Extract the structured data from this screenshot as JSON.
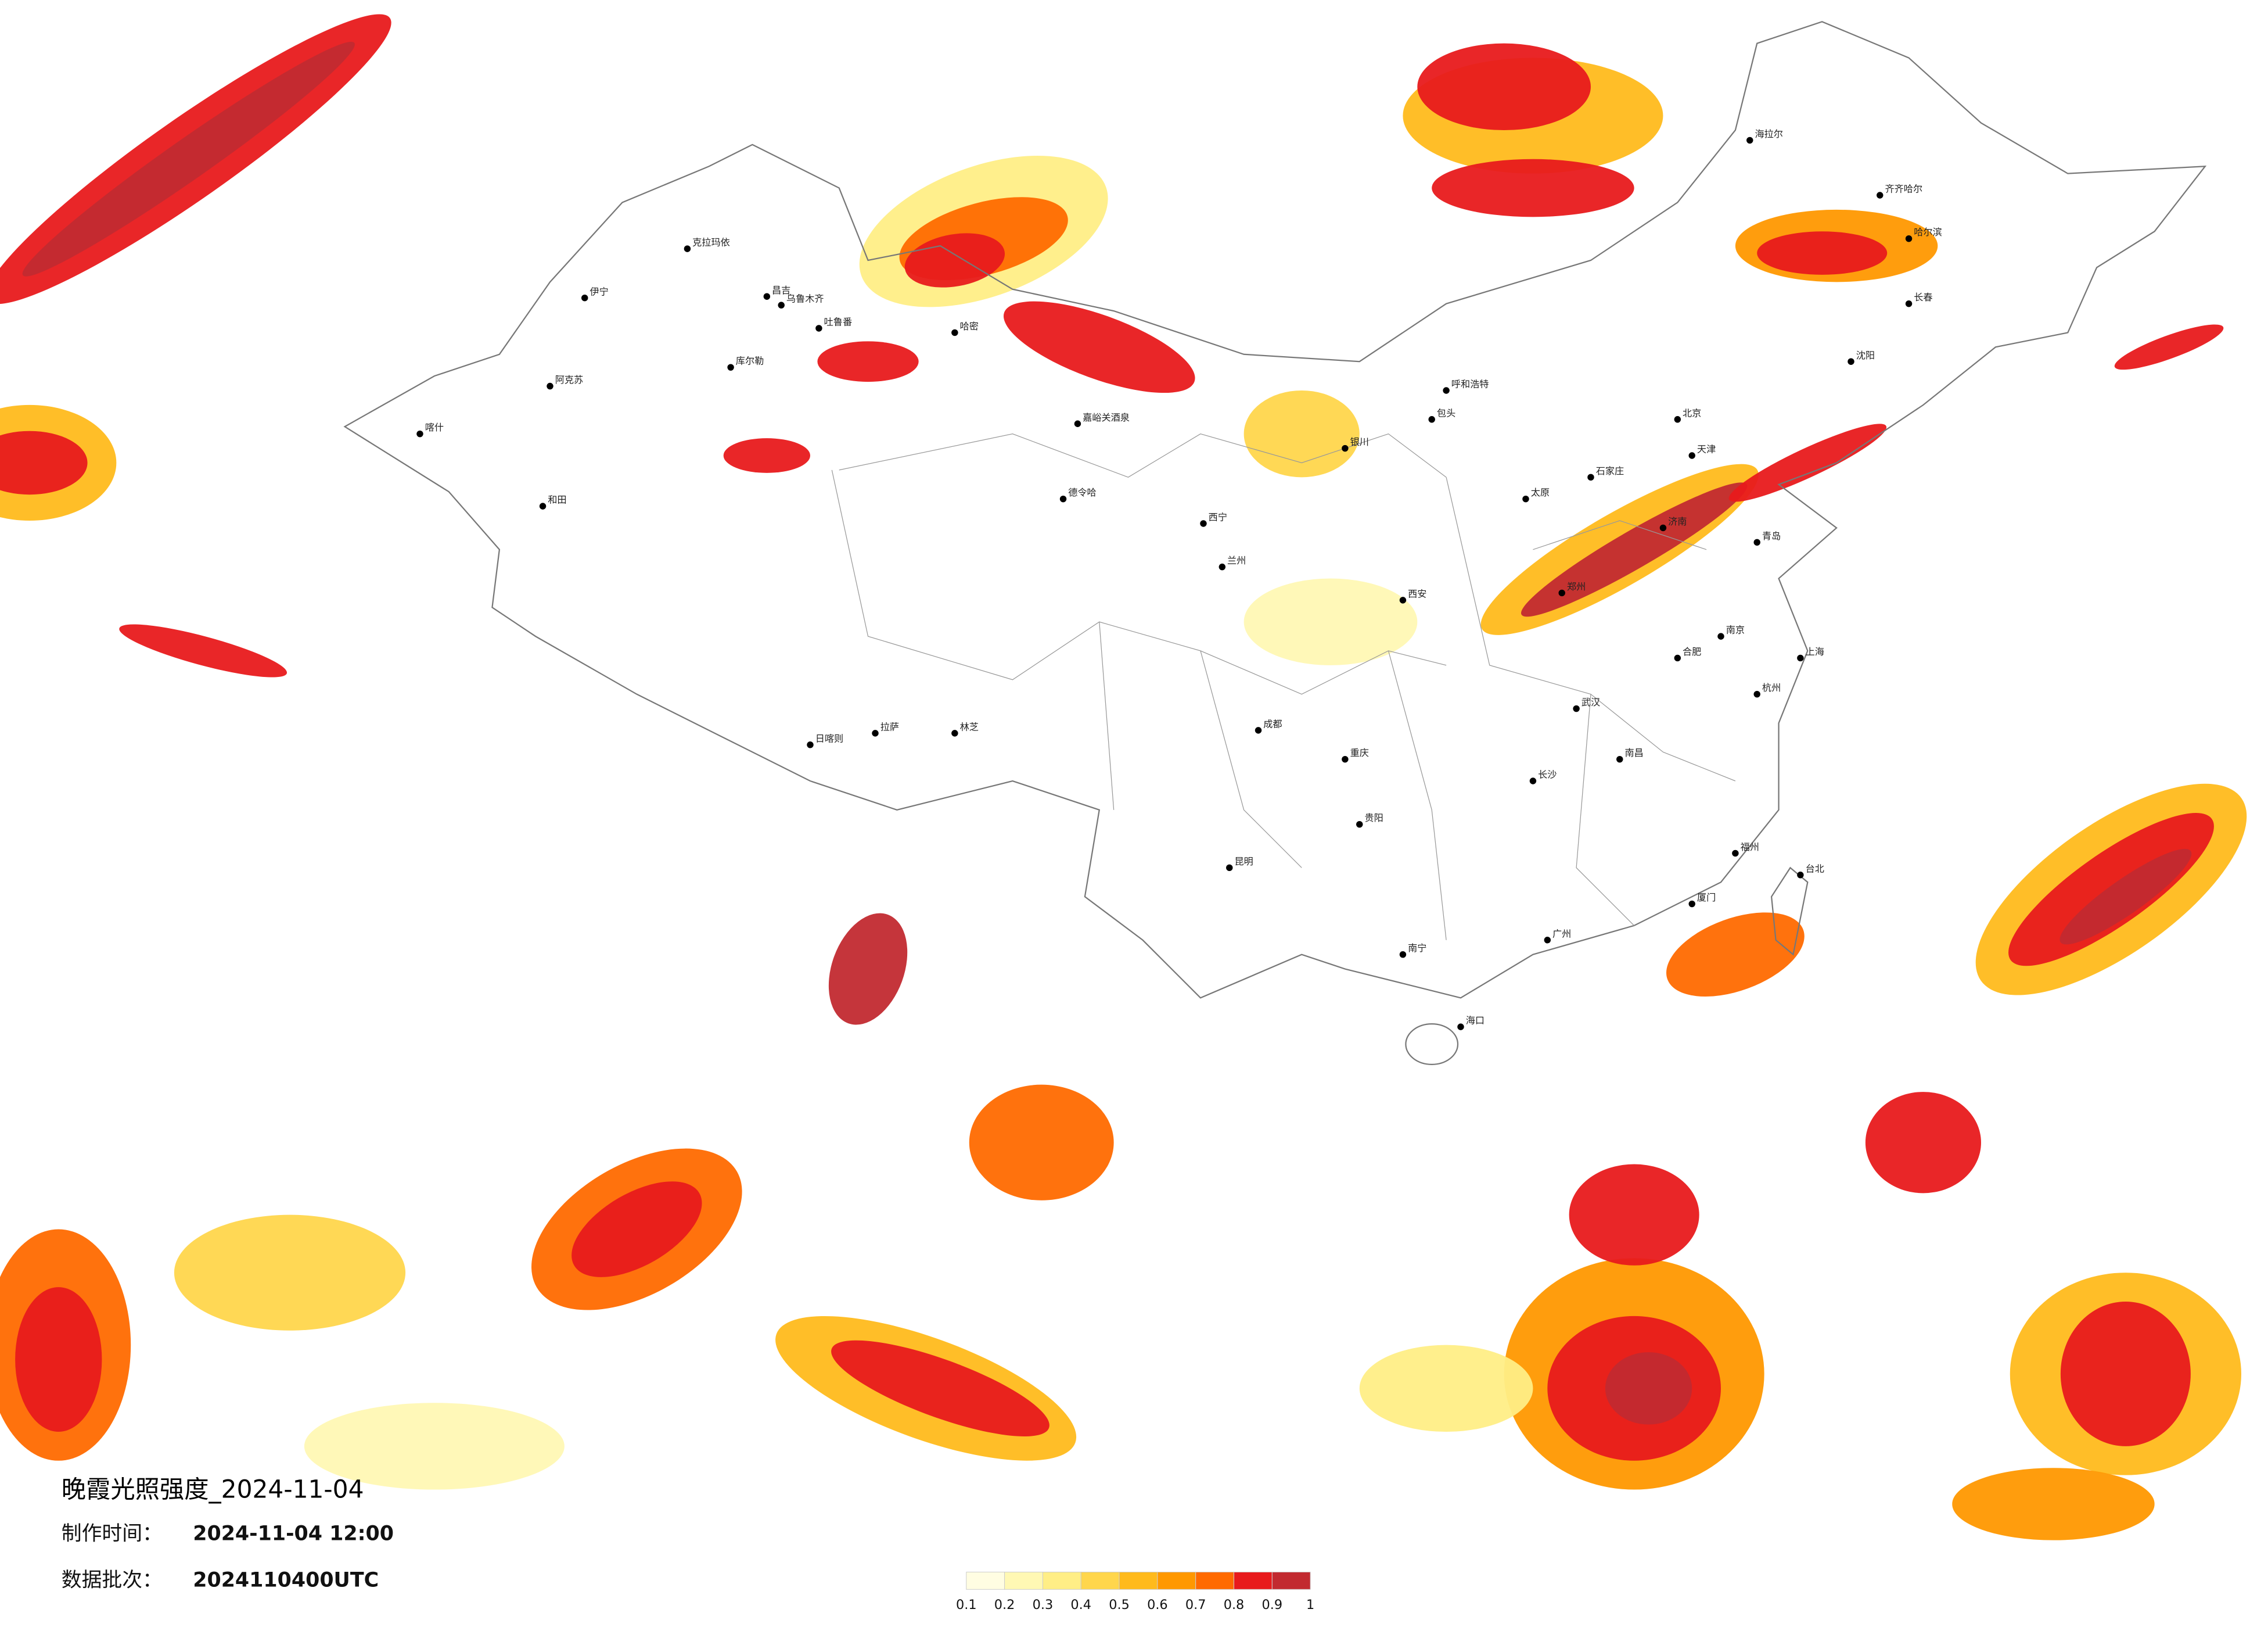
{
  "map": {
    "title": "晚霞光照强度_2024-11-04",
    "made_label": "制作时间：",
    "made_time": "2024-11-04 12:00",
    "batch_label": "数据批次：",
    "batch": "2024110400UTC",
    "colorbar": {
      "ticks": [
        0.1,
        0.2,
        0.3,
        0.4,
        0.5,
        0.6,
        0.7,
        0.8,
        0.9,
        1
      ],
      "colors": [
        "#fffde2",
        "#fff8b4",
        "#ffee86",
        "#ffd64c",
        "#ffba1c",
        "#ff9800",
        "#ff6a00",
        "#e81a1c",
        "#c22a30"
      ]
    },
    "cities": [
      "克拉玛依",
      "伊宁",
      "昌吉",
      "乌鲁木齐",
      "吐鲁番",
      "库尔勒",
      "阿克苏",
      "喀什",
      "和田",
      "哈密",
      "嘉峪关酒泉",
      "德令哈",
      "拉萨",
      "日喀则",
      "林芝",
      "西宁",
      "兰州",
      "银川",
      "呼和浩特",
      "北京",
      "天津",
      "石家庄",
      "太原",
      "济南",
      "郑州",
      "西安",
      "武汉",
      "长沙",
      "南昌",
      "合肥",
      "南京",
      "上海",
      "杭州",
      "福州",
      "广州",
      "南宁",
      "海口",
      "贵阳",
      "昆明",
      "成都",
      "重庆",
      "哈尔滨",
      "长春",
      "沈阳",
      "齐齐哈尔",
      "海拉尔",
      "台北",
      "包头",
      "青岛",
      "厦门"
    ]
  }
}
